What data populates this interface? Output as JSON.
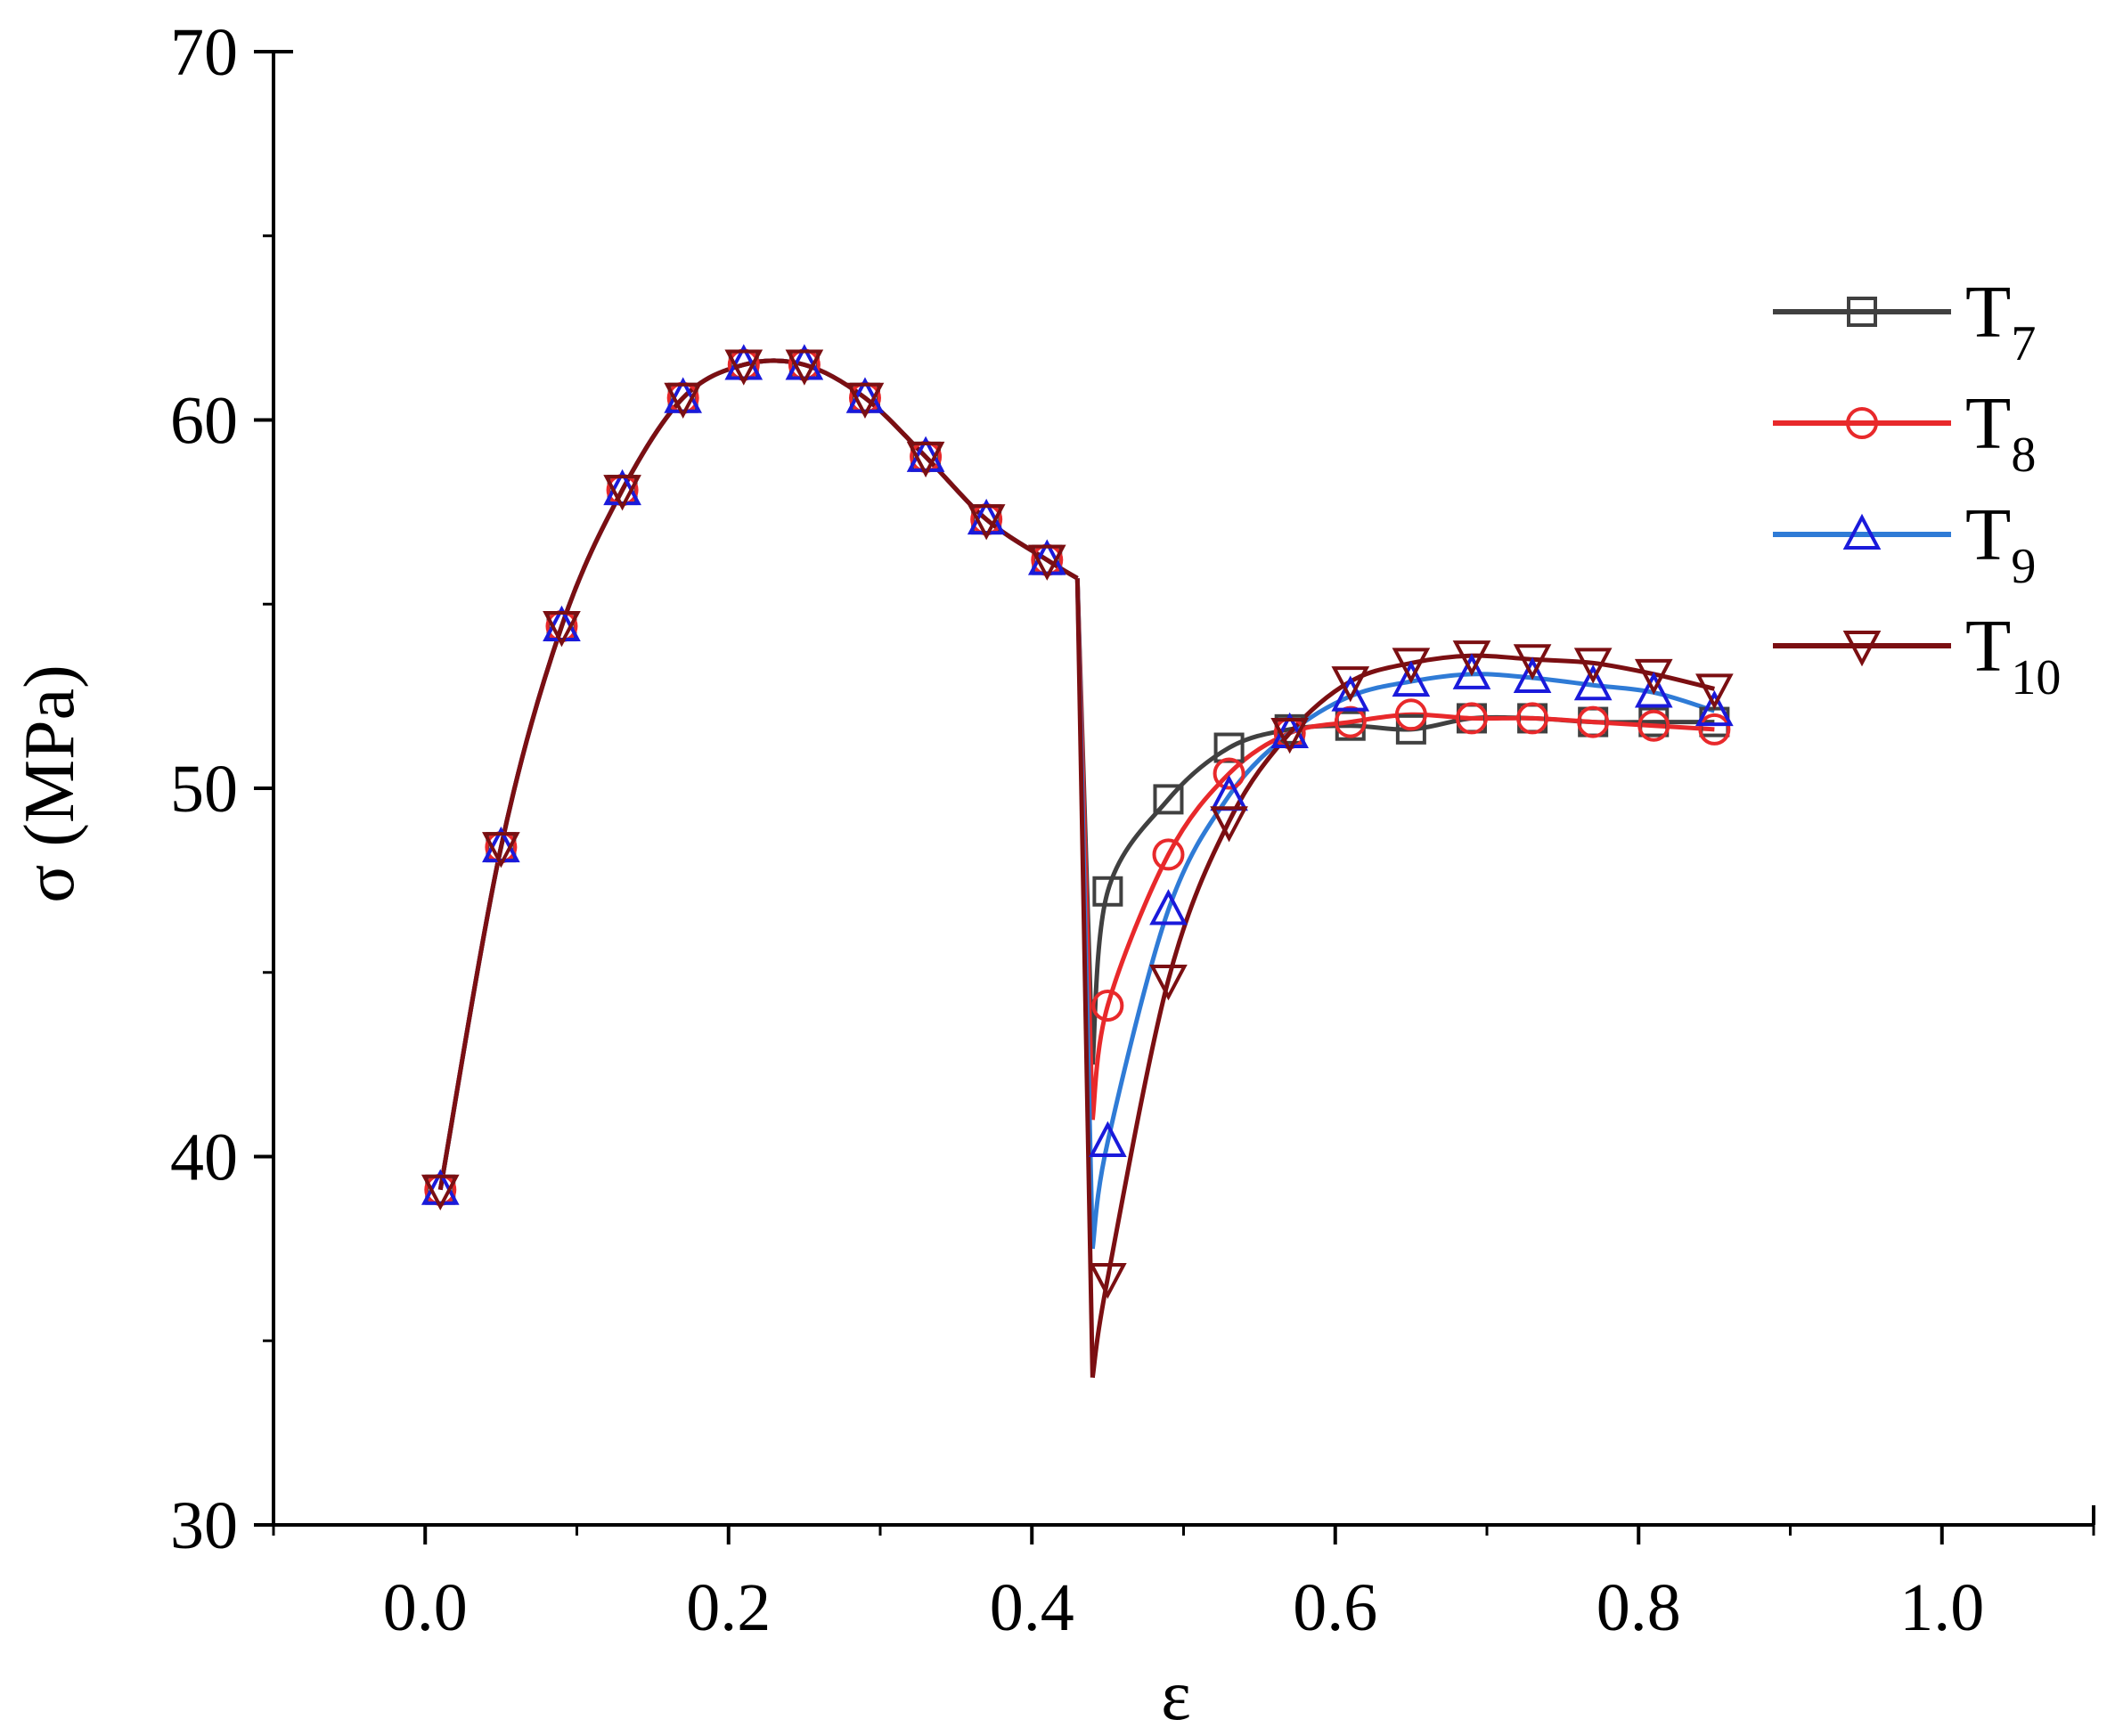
{
  "chart_data": {
    "type": "line",
    "title": "",
    "xlabel": "ε",
    "ylabel": "σ (MPa)",
    "xlim": [
      -0.1,
      1.1
    ],
    "ylim": [
      30,
      70
    ],
    "xticks": [
      0.0,
      0.2,
      0.4,
      0.6,
      0.8,
      1.0
    ],
    "xtick_labels": [
      "0.0",
      "0.2",
      "0.4",
      "0.6",
      "0.8",
      "1.0"
    ],
    "yticks": [
      30,
      40,
      50,
      60,
      70
    ],
    "ytick_labels": [
      "30",
      "40",
      "50",
      "60",
      "70"
    ],
    "legend_position": "right",
    "series": [
      {
        "name": "T7",
        "label_main": "T",
        "label_sub": "7",
        "color": "#404040",
        "marker": "square",
        "x": [
          0.01,
          0.05,
          0.09,
          0.13,
          0.17,
          0.21,
          0.25,
          0.29,
          0.33,
          0.37,
          0.41,
          0.45,
          0.49,
          0.53,
          0.57,
          0.61,
          0.65,
          0.69,
          0.73,
          0.77,
          0.81,
          0.85
        ],
        "y": [
          39.1,
          48.4,
          54.4,
          58.1,
          60.6,
          61.5,
          61.5,
          60.6,
          59.0,
          57.3,
          56.2,
          47.2,
          49.7,
          51.1,
          51.6,
          51.7,
          51.6,
          51.9,
          51.9,
          51.8,
          51.8,
          51.8
        ]
      },
      {
        "name": "T8",
        "label_main": "T",
        "label_sub": "8",
        "color": "#e8292b",
        "marker": "circle",
        "x": [
          0.01,
          0.05,
          0.09,
          0.13,
          0.17,
          0.21,
          0.25,
          0.29,
          0.33,
          0.37,
          0.41,
          0.45,
          0.49,
          0.53,
          0.57,
          0.61,
          0.65,
          0.69,
          0.73,
          0.77,
          0.81,
          0.85
        ],
        "y": [
          39.1,
          48.4,
          54.4,
          58.1,
          60.6,
          61.5,
          61.5,
          60.6,
          59.0,
          57.3,
          56.2,
          44.1,
          48.2,
          50.4,
          51.5,
          51.8,
          52.0,
          51.9,
          51.9,
          51.8,
          51.7,
          51.6
        ]
      },
      {
        "name": "T9",
        "label_main": "T",
        "label_sub": "9",
        "color": "#2f7bd6",
        "marker": "triangle-up",
        "x": [
          0.01,
          0.05,
          0.09,
          0.13,
          0.17,
          0.21,
          0.25,
          0.29,
          0.33,
          0.37,
          0.41,
          0.45,
          0.49,
          0.53,
          0.57,
          0.61,
          0.65,
          0.69,
          0.73,
          0.77,
          0.81,
          0.85
        ],
        "y": [
          39.1,
          48.4,
          54.4,
          58.1,
          60.6,
          61.5,
          61.5,
          60.6,
          59.0,
          57.3,
          56.2,
          40.4,
          46.7,
          49.8,
          51.5,
          52.5,
          52.9,
          53.1,
          53.0,
          52.8,
          52.6,
          52.1
        ]
      },
      {
        "name": "T10",
        "label_main": "T",
        "label_sub": "10",
        "color": "#7b0f12",
        "marker": "triangle-down",
        "x": [
          0.01,
          0.05,
          0.09,
          0.13,
          0.17,
          0.21,
          0.25,
          0.29,
          0.33,
          0.37,
          0.41,
          0.45,
          0.49,
          0.53,
          0.57,
          0.61,
          0.65,
          0.69,
          0.73,
          0.77,
          0.81,
          0.85
        ],
        "y": [
          39.1,
          48.4,
          54.4,
          58.1,
          60.6,
          61.5,
          61.5,
          60.6,
          59.0,
          57.3,
          56.2,
          36.7,
          44.8,
          49.1,
          51.5,
          52.9,
          53.4,
          53.6,
          53.5,
          53.4,
          53.1,
          52.7
        ]
      }
    ]
  }
}
